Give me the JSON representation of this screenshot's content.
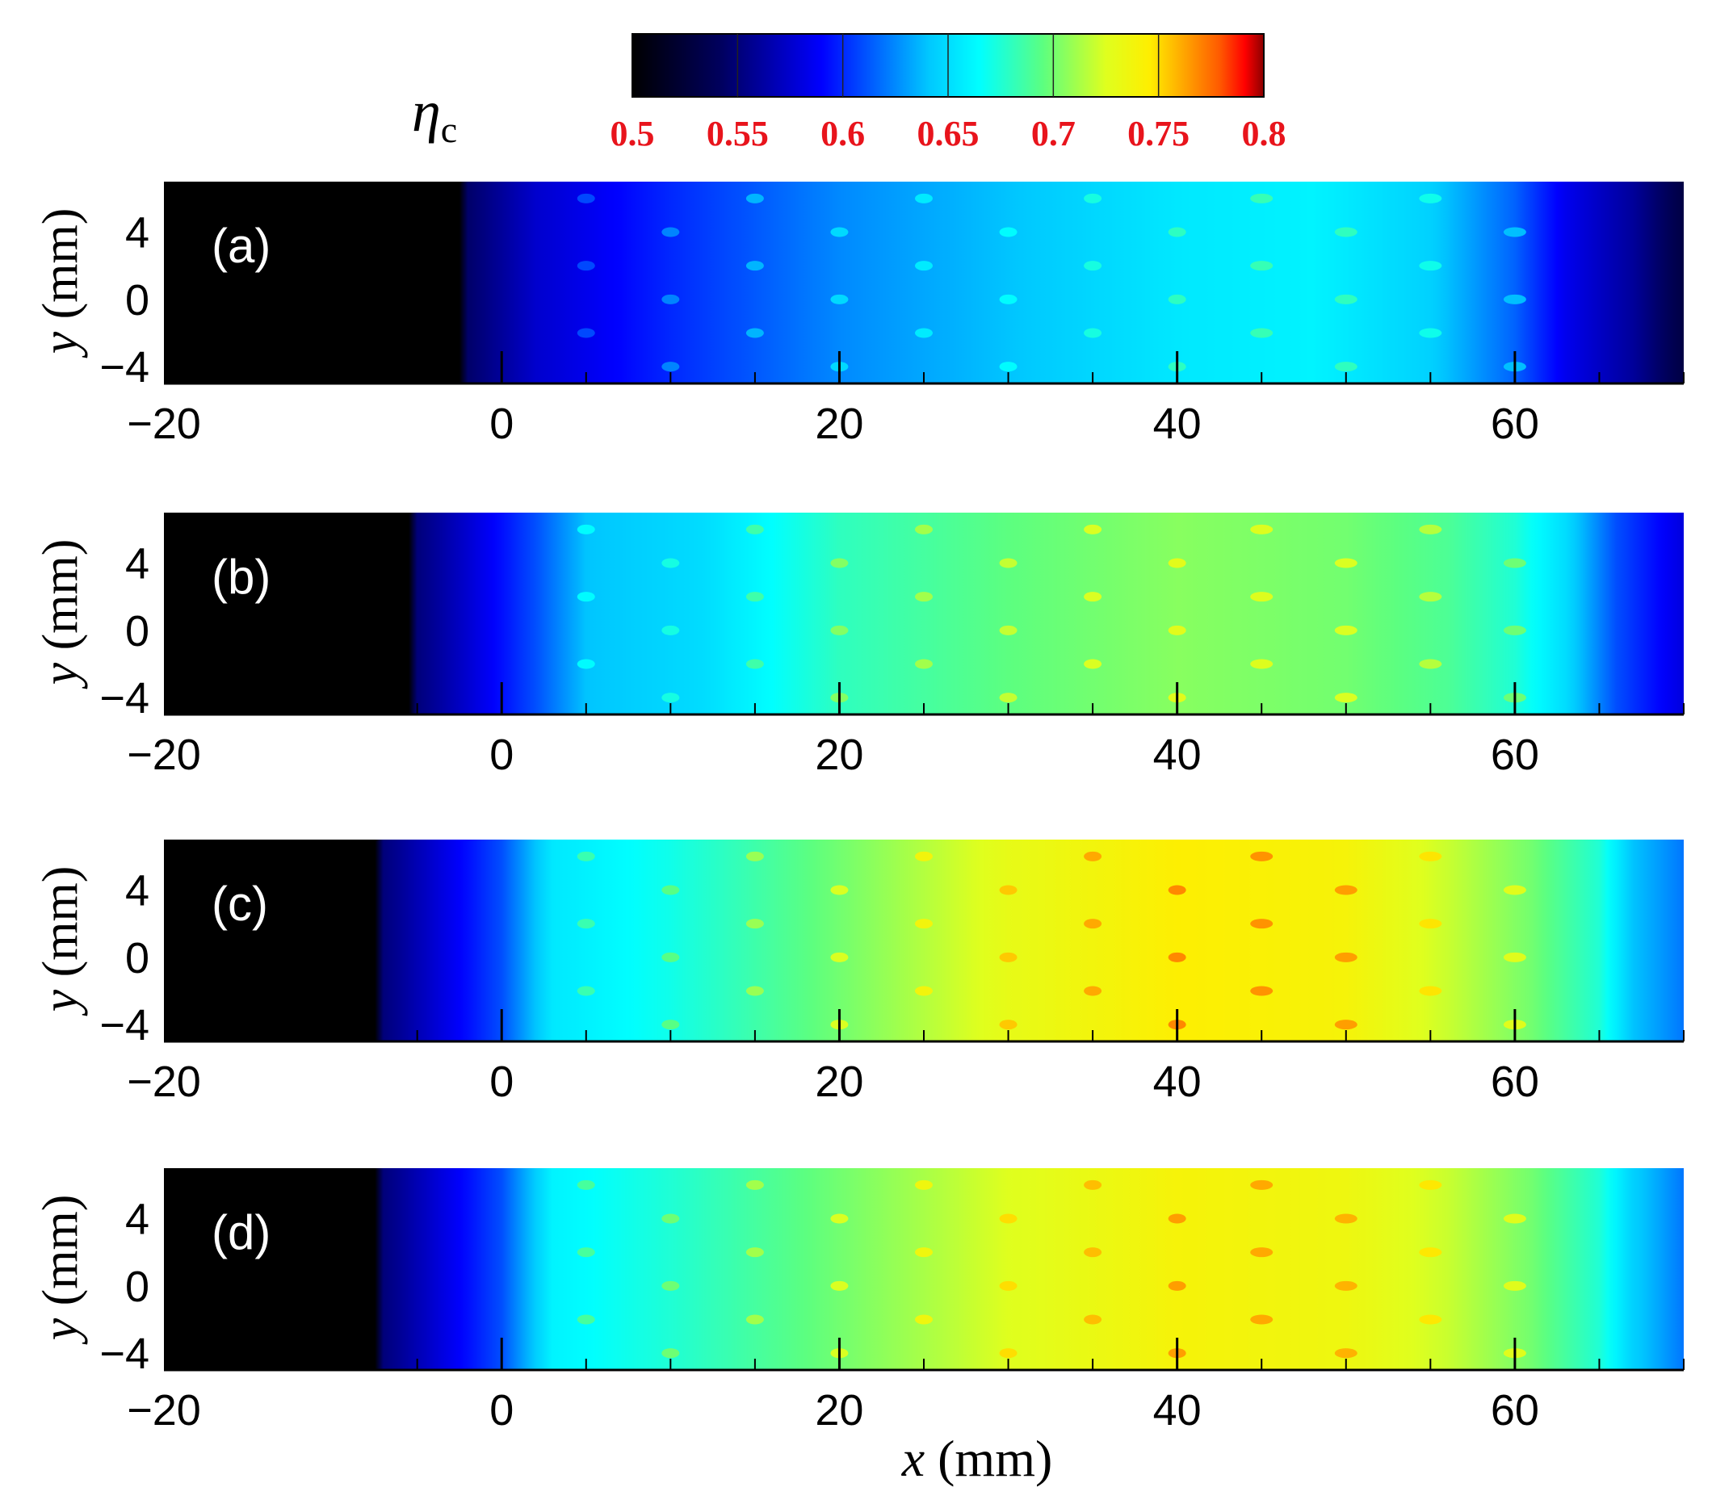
{
  "chart_data": {
    "type": "heatmap",
    "title": "",
    "colorbar": {
      "label_symbol": "η",
      "label_subscript": "c",
      "ticks": [
        "0.5",
        "0.55",
        "0.6",
        "0.65",
        "0.7",
        "0.75",
        "0.8"
      ],
      "range": [
        0.5,
        0.8
      ],
      "tick_color": "#e8141c",
      "colormap": [
        [
          0.0,
          "#000000"
        ],
        [
          0.14,
          "#00005e"
        ],
        [
          0.3,
          "#0000ff"
        ],
        [
          0.47,
          "#00c8ff"
        ],
        [
          0.55,
          "#00ffff"
        ],
        [
          0.65,
          "#5cff80"
        ],
        [
          0.75,
          "#dfff1e"
        ],
        [
          0.82,
          "#ffee00"
        ],
        [
          0.88,
          "#ff9d00"
        ],
        [
          0.93,
          "#ff5a00"
        ],
        [
          0.97,
          "#ff0000"
        ],
        [
          1.0,
          "#8b0000"
        ]
      ]
    },
    "xlabel": "x (mm)",
    "xlabel_italic": "x",
    "xlabel_unit": "(mm)",
    "xlim": [
      -20,
      70
    ],
    "xticks": [
      "−20",
      "0",
      "20",
      "40",
      "60"
    ],
    "xtick_values": [
      -20,
      0,
      20,
      40,
      60
    ],
    "ylabel_italic": "y",
    "ylabel_unit": "(mm)",
    "ylim": [
      -5,
      7
    ],
    "yticks": [
      "4",
      "0",
      "−4"
    ],
    "ytick_values": [
      4,
      0,
      -4
    ],
    "hole_x": [
      5,
      10,
      15,
      20,
      25,
      30,
      35,
      40,
      45,
      50,
      55,
      60
    ],
    "panels": [
      {
        "label": "(a)",
        "profile": [
          [
            -20,
            0.5
          ],
          [
            -2.5,
            0.5
          ],
          [
            -2,
            0.545
          ],
          [
            2,
            0.575
          ],
          [
            10,
            0.6
          ],
          [
            20,
            0.625
          ],
          [
            30,
            0.64
          ],
          [
            40,
            0.655
          ],
          [
            48,
            0.66
          ],
          [
            55,
            0.645
          ],
          [
            60,
            0.615
          ],
          [
            63,
            0.585
          ],
          [
            67,
            0.56
          ],
          [
            70,
            0.53
          ]
        ]
      },
      {
        "label": "(b)",
        "profile": [
          [
            -20,
            0.5
          ],
          [
            -5.5,
            0.5
          ],
          [
            -5,
            0.55
          ],
          [
            -1,
            0.585
          ],
          [
            2,
            0.61
          ],
          [
            5,
            0.64
          ],
          [
            12,
            0.65
          ],
          [
            20,
            0.68
          ],
          [
            30,
            0.695
          ],
          [
            40,
            0.705
          ],
          [
            50,
            0.7
          ],
          [
            56,
            0.69
          ],
          [
            60,
            0.675
          ],
          [
            63,
            0.65
          ],
          [
            66,
            0.61
          ],
          [
            70,
            0.58
          ]
        ]
      },
      {
        "label": "(c)",
        "profile": [
          [
            -20,
            0.5
          ],
          [
            -7.5,
            0.5
          ],
          [
            -7,
            0.55
          ],
          [
            -3,
            0.585
          ],
          [
            0,
            0.61
          ],
          [
            3,
            0.655
          ],
          [
            10,
            0.67
          ],
          [
            20,
            0.7
          ],
          [
            30,
            0.73
          ],
          [
            40,
            0.745
          ],
          [
            50,
            0.74
          ],
          [
            56,
            0.72
          ],
          [
            61,
            0.7
          ],
          [
            65,
            0.675
          ],
          [
            67,
            0.64
          ],
          [
            70,
            0.62
          ]
        ]
      },
      {
        "label": "(d)",
        "profile": [
          [
            -20,
            0.5
          ],
          [
            -7.5,
            0.5
          ],
          [
            -7,
            0.55
          ],
          [
            -3,
            0.585
          ],
          [
            0,
            0.61
          ],
          [
            3,
            0.66
          ],
          [
            10,
            0.675
          ],
          [
            20,
            0.7
          ],
          [
            30,
            0.725
          ],
          [
            40,
            0.74
          ],
          [
            50,
            0.735
          ],
          [
            56,
            0.72
          ],
          [
            61,
            0.7
          ],
          [
            65,
            0.675
          ],
          [
            67,
            0.645
          ],
          [
            70,
            0.62
          ]
        ]
      }
    ]
  }
}
